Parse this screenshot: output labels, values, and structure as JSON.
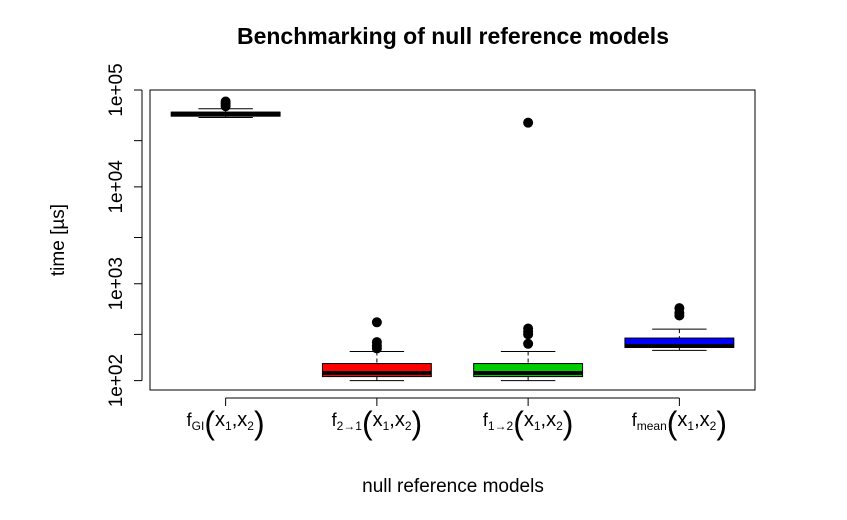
{
  "chart_data": {
    "type": "box",
    "title": "Benchmarking of null reference models",
    "xlabel": "null reference models",
    "ylabel": "time [µs]",
    "y_scale": "log",
    "ylim": [
      80,
      100000
    ],
    "y_ticks": [
      {
        "value": 100,
        "label": "1e+02"
      },
      {
        "value": 1000,
        "label": "1e+03"
      },
      {
        "value": 10000,
        "label": "1e+04"
      },
      {
        "value": 100000,
        "label": "1e+05"
      }
    ],
    "categories": [
      {
        "base": "f",
        "sub": "GI",
        "args": "x1,x2"
      },
      {
        "base": "f",
        "sub": "2→1",
        "args": "x1,x2"
      },
      {
        "base": "f",
        "sub": "1→2",
        "args": "x1,x2"
      },
      {
        "base": "f",
        "sub": "mean",
        "args": "x1,x2"
      }
    ],
    "boxes": [
      {
        "color": "#000000",
        "whisker_low": 52000,
        "q1": 55000,
        "median": 57000,
        "q3": 59000,
        "whisker_high": 64000,
        "outliers": [
          68000,
          72000,
          76000
        ]
      },
      {
        "color": "#ff0000",
        "whisker_low": 100,
        "q1": 110,
        "median": 120,
        "q3": 150,
        "whisker_high": 200,
        "outliers": [
          215,
          230,
          250,
          400
        ]
      },
      {
        "color": "#00cc00",
        "whisker_low": 100,
        "q1": 110,
        "median": 120,
        "q3": 150,
        "whisker_high": 200,
        "outliers": [
          240,
          300,
          320,
          345,
          46000
        ]
      },
      {
        "color": "#0000ff",
        "whisker_low": 205,
        "q1": 220,
        "median": 228,
        "q3": 275,
        "whisker_high": 340,
        "outliers": [
          470,
          500,
          560
        ]
      }
    ],
    "grid": false,
    "legend": "none"
  }
}
